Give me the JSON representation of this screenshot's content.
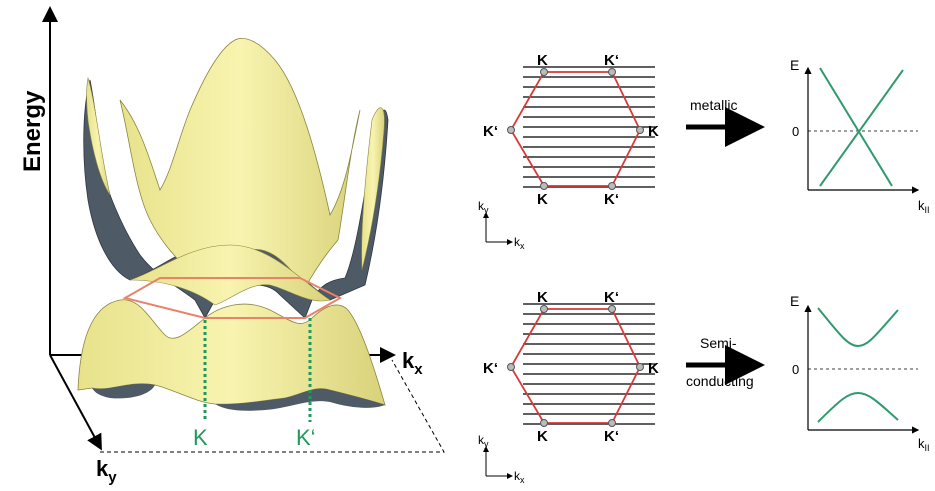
{
  "left_panel": {
    "y_axis_label": "Energy",
    "x_axis_label": "k",
    "x_axis_sub": "x",
    "depth_axis_label": "k",
    "depth_axis_sub": "y",
    "point_k": "K",
    "point_k_prime": "K‘"
  },
  "top_row": {
    "hex_labels": {
      "top_left": "K",
      "top_right": "K‘",
      "left": "K‘",
      "right": "K",
      "bottom_left": "K",
      "bottom_right": "K‘"
    },
    "arrow_label": "metallic",
    "axes": {
      "ky": "k",
      "ky_sub": "y",
      "kx": "k",
      "kx_sub": "x"
    },
    "plot": {
      "y_label": "E",
      "zero_label": "0",
      "x_label": "k",
      "x_sub": "II",
      "band_type": "crossing"
    }
  },
  "bottom_row": {
    "hex_labels": {
      "top_left": "K",
      "top_right": "K‘",
      "left": "K‘",
      "right": "K",
      "bottom_left": "K",
      "bottom_right": "K‘"
    },
    "arrow_label_line1": "Semi-",
    "arrow_label_line2": "conducting",
    "axes": {
      "ky": "k",
      "ky_sub": "y",
      "kx": "k",
      "kx_sub": "x"
    },
    "plot": {
      "y_label": "E",
      "zero_label": "0",
      "x_label": "k",
      "x_sub": "II",
      "band_type": "gapped"
    }
  },
  "colors": {
    "surface_yellow": "#f3ee9a",
    "surface_dark": "#4e5a65",
    "hexagon_red": "#d83a3a",
    "brillouin_orange": "#e8836a",
    "band_green": "#2f9a6c",
    "k_point_green": "#1f9a5c"
  }
}
